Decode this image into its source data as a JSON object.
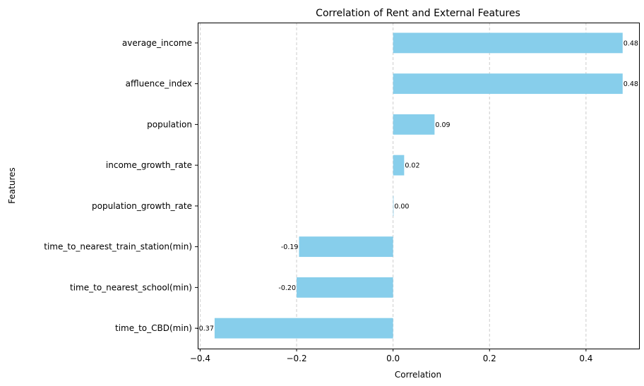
{
  "chart_data": {
    "type": "bar",
    "orientation": "horizontal",
    "title": "Correlation of Rent and External Features",
    "xlabel": "Correlation",
    "ylabel": "Features",
    "xlim": [
      -0.405,
      0.51
    ],
    "xticks": [
      -0.4,
      -0.2,
      0.0,
      0.2,
      0.4
    ],
    "xtick_labels": [
      "−0.4",
      "−0.2",
      "0.0",
      "0.2",
      "0.4"
    ],
    "grid": "x-axis dashed",
    "bar_color": "#87CEEB",
    "categories": [
      "average_income",
      "affluence_index",
      "population",
      "income_growth_rate",
      "population_growth_rate",
      "time_to_nearest_train_station(min)",
      "time_to_nearest_school(min)",
      "time_to_CBD(min)"
    ],
    "values": [
      0.476,
      0.476,
      0.086,
      0.023,
      0.001,
      -0.195,
      -0.2,
      -0.37
    ],
    "data_labels": [
      "0.48",
      "0.48",
      "0.09",
      "0.02",
      "0.00",
      "-0.19",
      "-0.20",
      "-0.37"
    ]
  }
}
